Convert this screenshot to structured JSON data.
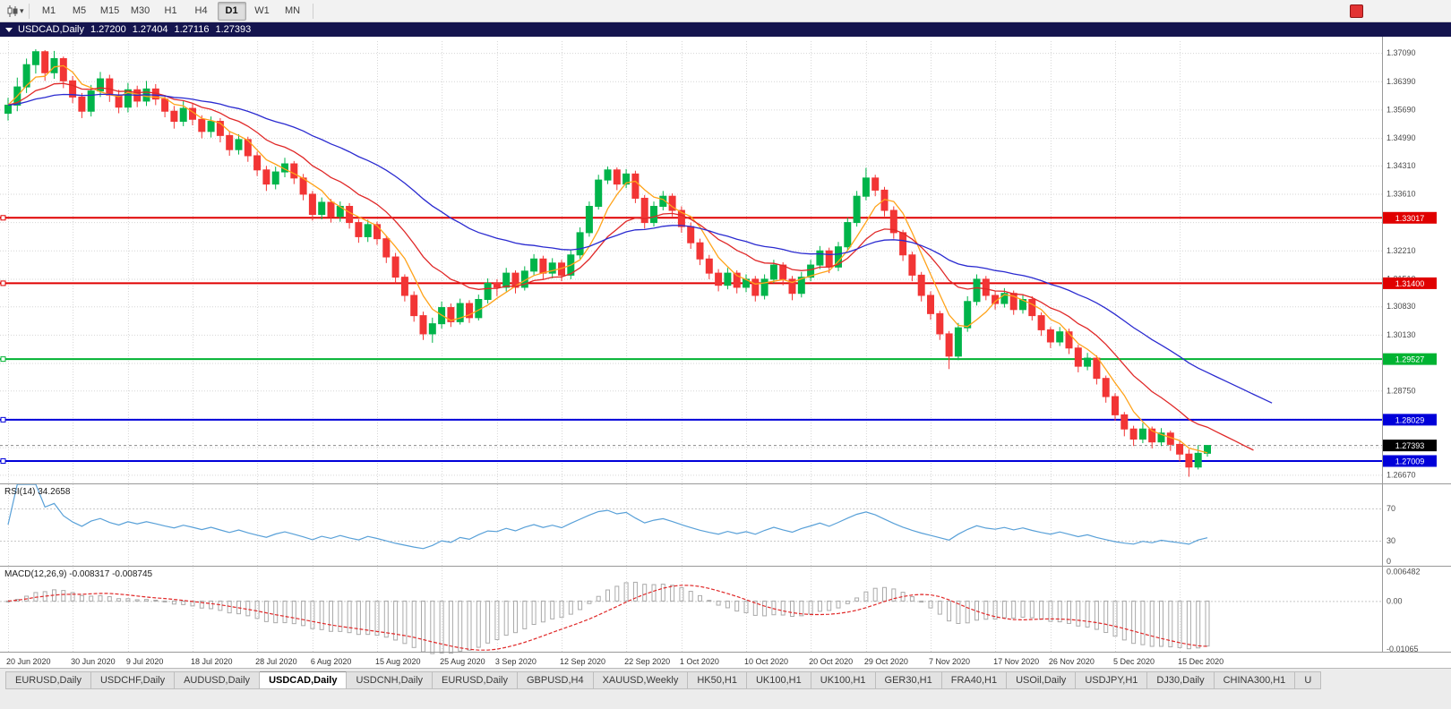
{
  "window": {
    "symbol": "USDCAD,Daily",
    "open": "1.27200",
    "high": "1.27404",
    "low": "1.27116",
    "close": "1.27393"
  },
  "toolbar": {
    "timeframes": [
      "M1",
      "M5",
      "M15",
      "M30",
      "H1",
      "H4",
      "D1",
      "W1",
      "MN"
    ],
    "active_timeframe": "D1",
    "icons": {
      "chart_type": "candlestick-chart-icon",
      "dropdown": "chevron-down-icon",
      "right_marker": "red-square-icon"
    }
  },
  "bottom_tabs": [
    {
      "label": "EURUSD,Daily",
      "active": false
    },
    {
      "label": "USDCHF,Daily",
      "active": false
    },
    {
      "label": "AUDUSD,Daily",
      "active": false
    },
    {
      "label": "USDCAD,Daily",
      "active": true
    },
    {
      "label": "USDCNH,Daily",
      "active": false
    },
    {
      "label": "EURUSD,Daily",
      "active": false
    },
    {
      "label": "GBPUSD,H4",
      "active": false
    },
    {
      "label": "XAUUSD,Weekly",
      "active": false
    },
    {
      "label": "HK50,H1",
      "active": false
    },
    {
      "label": "UK100,H1",
      "active": false
    },
    {
      "label": "UK100,H1",
      "active": false
    },
    {
      "label": "GER30,H1",
      "active": false
    },
    {
      "label": "FRA40,H1",
      "active": false
    },
    {
      "label": "USOil,Daily",
      "active": false
    },
    {
      "label": "USDJPY,H1",
      "active": false
    },
    {
      "label": "DJ30,Daily",
      "active": false
    },
    {
      "label": "CHINA300,H1",
      "active": false
    },
    {
      "label": "U",
      "active": false
    }
  ],
  "chart_data": {
    "type": "candlestick",
    "symbol": "USDCAD",
    "timeframe": "Daily",
    "colors": {
      "bull": "#00b44a",
      "bear": "#f23535",
      "grid": "#d6d6d6",
      "axis_text": "#4a4a4a",
      "separator": "#999999"
    },
    "y_axis": {
      "pmin": 1.265,
      "pmax": 1.3738,
      "grid_prices": [
        1.3709,
        1.3639,
        1.3569,
        1.3499,
        1.3431,
        1.3361,
        1.3291,
        1.3221,
        1.3151,
        1.3083,
        1.3013,
        1.2943,
        1.2875,
        1.2805,
        1.2735,
        1.2667
      ],
      "labels": [
        "1.37090",
        "1.36390",
        "1.35690",
        "1.34990",
        "1.34310",
        "1.33610",
        "1.32210",
        "1.31510",
        "1.30830",
        "1.30130",
        "1.28750",
        "1.26670"
      ]
    },
    "x_ticks": [
      {
        "i": 0,
        "label": "20 Jun 2020"
      },
      {
        "i": 7,
        "label": "30 Jun 2020"
      },
      {
        "i": 13,
        "label": "9 Jul 2020"
      },
      {
        "i": 20,
        "label": "18 Jul 2020"
      },
      {
        "i": 27,
        "label": "28 Jul 2020"
      },
      {
        "i": 33,
        "label": "6 Aug 2020"
      },
      {
        "i": 40,
        "label": "15 Aug 2020"
      },
      {
        "i": 47,
        "label": "25 Aug 2020"
      },
      {
        "i": 53,
        "label": "3 Sep 2020"
      },
      {
        "i": 60,
        "label": "12 Sep 2020"
      },
      {
        "i": 67,
        "label": "22 Sep 2020"
      },
      {
        "i": 73,
        "label": "1 Oct 2020"
      },
      {
        "i": 80,
        "label": "10 Oct 2020"
      },
      {
        "i": 87,
        "label": "20 Oct 2020"
      },
      {
        "i": 93,
        "label": "29 Oct 2020"
      },
      {
        "i": 100,
        "label": "7 Nov 2020"
      },
      {
        "i": 107,
        "label": "17 Nov 2020"
      },
      {
        "i": 113,
        "label": "26 Nov 2020"
      },
      {
        "i": 120,
        "label": "5 Dec 2020"
      },
      {
        "i": 127,
        "label": "15 Dec 2020"
      }
    ],
    "hlines": [
      {
        "price": 1.33017,
        "label": "1.33017",
        "color": "#e00000"
      },
      {
        "price": 1.314,
        "label": "1.31400",
        "color": "#e00000"
      },
      {
        "price": 1.29527,
        "label": "1.29527",
        "color": "#00b332"
      },
      {
        "price": 1.28029,
        "label": "1.28029",
        "color": "#0000d9"
      },
      {
        "price": 1.27009,
        "label": "1.27009",
        "color": "#0000d9"
      }
    ],
    "current_price": {
      "value": 1.27393,
      "label": "1.27393",
      "bg": "#000000"
    },
    "mas": [
      {
        "period": 5,
        "type": "sma",
        "color": "#ffa31a",
        "extend": 0
      },
      {
        "period": 13,
        "type": "ema",
        "color": "#e02828",
        "extend": 5
      },
      {
        "period": 34,
        "type": "ema",
        "color": "#2a2ad0",
        "extend": 7
      }
    ],
    "rsi": {
      "name": "RSI(14)",
      "value": "34.2658",
      "period": 14,
      "levels": [
        70,
        30
      ],
      "axis_labels": [
        70,
        30,
        0
      ],
      "color": "#58a0d8"
    },
    "macd": {
      "name": "MACD(12,26,9)",
      "value_main": "-0.008317",
      "value_signal": "-0.008745",
      "fast": 12,
      "slow": 26,
      "signal": 9,
      "range": [
        -0.011,
        0.0072
      ],
      "axis_labels": [
        {
          "v": 0.006482,
          "t": "0.006482"
        },
        {
          "v": 0,
          "t": "0.00"
        },
        {
          "v": -0.01065,
          "t": "-0.01065"
        }
      ],
      "hist_color": "#aaaaaa",
      "signal_color": "#e02828"
    },
    "candles": [
      [
        1.356,
        1.3598,
        1.3542,
        1.358
      ],
      [
        1.358,
        1.3648,
        1.3565,
        1.3625
      ],
      [
        1.3625,
        1.3695,
        1.361,
        1.368
      ],
      [
        1.368,
        1.3718,
        1.3658,
        1.3712
      ],
      [
        1.3712,
        1.3716,
        1.364,
        1.366
      ],
      [
        1.366,
        1.3714,
        1.3645,
        1.3695
      ],
      [
        1.3695,
        1.37,
        1.3622,
        1.364
      ],
      [
        1.364,
        1.3652,
        1.3585,
        1.36
      ],
      [
        1.36,
        1.361,
        1.3548,
        1.3565
      ],
      [
        1.3565,
        1.363,
        1.3552,
        1.3615
      ],
      [
        1.3615,
        1.3662,
        1.36,
        1.3645
      ],
      [
        1.3645,
        1.3655,
        1.3588,
        1.3605
      ],
      [
        1.3605,
        1.3618,
        1.356,
        1.3575
      ],
      [
        1.3575,
        1.3635,
        1.3562,
        1.3618
      ],
      [
        1.3618,
        1.3628,
        1.3575,
        1.359
      ],
      [
        1.359,
        1.364,
        1.3578,
        1.362
      ],
      [
        1.362,
        1.3632,
        1.358,
        1.3595
      ],
      [
        1.3595,
        1.3605,
        1.355,
        1.3565
      ],
      [
        1.3565,
        1.3578,
        1.3522,
        1.354
      ],
      [
        1.354,
        1.359,
        1.3528,
        1.3572
      ],
      [
        1.3572,
        1.3585,
        1.353,
        1.3545
      ],
      [
        1.3545,
        1.3555,
        1.3498,
        1.3515
      ],
      [
        1.3515,
        1.3552,
        1.35,
        1.354
      ],
      [
        1.354,
        1.3548,
        1.3488,
        1.3505
      ],
      [
        1.3505,
        1.3515,
        1.3455,
        1.347
      ],
      [
        1.347,
        1.3508,
        1.3458,
        1.3495
      ],
      [
        1.3495,
        1.3502,
        1.344,
        1.3455
      ],
      [
        1.3455,
        1.3465,
        1.3405,
        1.342
      ],
      [
        1.342,
        1.343,
        1.3368,
        1.3385
      ],
      [
        1.3385,
        1.3428,
        1.3372,
        1.3415
      ],
      [
        1.3415,
        1.345,
        1.3402,
        1.3435
      ],
      [
        1.3435,
        1.3442,
        1.3385,
        1.34
      ],
      [
        1.34,
        1.341,
        1.3345,
        1.336
      ],
      [
        1.336,
        1.3368,
        1.3295,
        1.331
      ],
      [
        1.331,
        1.3352,
        1.3298,
        1.334
      ],
      [
        1.334,
        1.3348,
        1.329,
        1.3305
      ],
      [
        1.3305,
        1.3342,
        1.3292,
        1.333
      ],
      [
        1.333,
        1.3338,
        1.3275,
        1.329
      ],
      [
        1.329,
        1.3298,
        1.324,
        1.3255
      ],
      [
        1.3255,
        1.3297,
        1.3242,
        1.3285
      ],
      [
        1.3285,
        1.3292,
        1.3235,
        1.325
      ],
      [
        1.325,
        1.3258,
        1.319,
        1.3205
      ],
      [
        1.3205,
        1.3215,
        1.314,
        1.3155
      ],
      [
        1.3155,
        1.3162,
        1.3095,
        1.311
      ],
      [
        1.311,
        1.312,
        1.3045,
        1.306
      ],
      [
        1.306,
        1.307,
        1.3,
        1.3015
      ],
      [
        1.3015,
        1.3055,
        1.2993,
        1.304
      ],
      [
        1.304,
        1.3095,
        1.3028,
        1.308
      ],
      [
        1.308,
        1.309,
        1.3032,
        1.3045
      ],
      [
        1.3045,
        1.3102,
        1.3038,
        1.309
      ],
      [
        1.309,
        1.3098,
        1.3042,
        1.3055
      ],
      [
        1.3055,
        1.3112,
        1.3048,
        1.31
      ],
      [
        1.31,
        1.3152,
        1.309,
        1.314
      ],
      [
        1.314,
        1.315,
        1.3108,
        1.313
      ],
      [
        1.313,
        1.3178,
        1.312,
        1.3165
      ],
      [
        1.3165,
        1.3172,
        1.3115,
        1.313
      ],
      [
        1.313,
        1.3182,
        1.3122,
        1.317
      ],
      [
        1.317,
        1.3212,
        1.316,
        1.32
      ],
      [
        1.32,
        1.3208,
        1.315,
        1.3165
      ],
      [
        1.3165,
        1.3202,
        1.3152,
        1.319
      ],
      [
        1.319,
        1.3198,
        1.3145,
        1.316
      ],
      [
        1.316,
        1.3222,
        1.315,
        1.321
      ],
      [
        1.321,
        1.3278,
        1.32,
        1.3265
      ],
      [
        1.3265,
        1.3342,
        1.3255,
        1.333
      ],
      [
        1.333,
        1.3408,
        1.3322,
        1.3395
      ],
      [
        1.3395,
        1.3428,
        1.3385,
        1.342
      ],
      [
        1.342,
        1.3426,
        1.337,
        1.3385
      ],
      [
        1.3385,
        1.3422,
        1.3375,
        1.341
      ],
      [
        1.341,
        1.3418,
        1.3338,
        1.335
      ],
      [
        1.335,
        1.3358,
        1.3275,
        1.329
      ],
      [
        1.329,
        1.3342,
        1.328,
        1.333
      ],
      [
        1.333,
        1.3368,
        1.332,
        1.3355
      ],
      [
        1.3355,
        1.3362,
        1.3305,
        1.332
      ],
      [
        1.332,
        1.333,
        1.3265,
        1.328
      ],
      [
        1.328,
        1.329,
        1.3225,
        1.324
      ],
      [
        1.324,
        1.325,
        1.3185,
        1.32
      ],
      [
        1.32,
        1.321,
        1.315,
        1.3165
      ],
      [
        1.3165,
        1.3175,
        1.312,
        1.3135
      ],
      [
        1.3135,
        1.3178,
        1.3125,
        1.3165
      ],
      [
        1.3165,
        1.3172,
        1.3115,
        1.313
      ],
      [
        1.313,
        1.3162,
        1.3118,
        1.315
      ],
      [
        1.315,
        1.3158,
        1.3095,
        1.311
      ],
      [
        1.311,
        1.3162,
        1.31,
        1.315
      ],
      [
        1.315,
        1.3198,
        1.314,
        1.3185
      ],
      [
        1.3185,
        1.3192,
        1.3135,
        1.315
      ],
      [
        1.315,
        1.3158,
        1.3098,
        1.3115
      ],
      [
        1.3115,
        1.3168,
        1.3105,
        1.3155
      ],
      [
        1.3155,
        1.3198,
        1.3145,
        1.3185
      ],
      [
        1.3185,
        1.3232,
        1.3175,
        1.322
      ],
      [
        1.322,
        1.3228,
        1.3165,
        1.318
      ],
      [
        1.318,
        1.3242,
        1.317,
        1.323
      ],
      [
        1.323,
        1.3302,
        1.322,
        1.329
      ],
      [
        1.329,
        1.3368,
        1.328,
        1.3355
      ],
      [
        1.3355,
        1.3425,
        1.3345,
        1.34
      ],
      [
        1.34,
        1.3408,
        1.3355,
        1.337
      ],
      [
        1.337,
        1.3378,
        1.3305,
        1.332
      ],
      [
        1.332,
        1.333,
        1.325,
        1.3265
      ],
      [
        1.3265,
        1.3272,
        1.3195,
        1.321
      ],
      [
        1.321,
        1.3218,
        1.3145,
        1.316
      ],
      [
        1.316,
        1.3168,
        1.3095,
        1.311
      ],
      [
        1.311,
        1.312,
        1.305,
        1.3065
      ],
      [
        1.3065,
        1.3072,
        1.3,
        1.3015
      ],
      [
        1.3015,
        1.3022,
        1.2928,
        1.296
      ],
      [
        1.296,
        1.3042,
        1.295,
        1.303
      ],
      [
        1.303,
        1.3108,
        1.302,
        1.3095
      ],
      [
        1.3095,
        1.3162,
        1.3085,
        1.315
      ],
      [
        1.315,
        1.3158,
        1.3098,
        1.311
      ],
      [
        1.311,
        1.3122,
        1.3075,
        1.309
      ],
      [
        1.309,
        1.3128,
        1.308,
        1.3115
      ],
      [
        1.3115,
        1.3122,
        1.3062,
        1.3075
      ],
      [
        1.3075,
        1.3112,
        1.3065,
        1.31
      ],
      [
        1.31,
        1.3108,
        1.3048,
        1.306
      ],
      [
        1.306,
        1.3068,
        1.301,
        1.3025
      ],
      [
        1.3025,
        1.3032,
        1.298,
        1.2995
      ],
      [
        1.2995,
        1.3032,
        1.2985,
        1.302
      ],
      [
        1.302,
        1.3028,
        1.2965,
        1.298
      ],
      [
        1.298,
        1.2988,
        1.292,
        1.2935
      ],
      [
        1.2935,
        1.2968,
        1.2925,
        1.2955
      ],
      [
        1.2955,
        1.2962,
        1.289,
        1.2905
      ],
      [
        1.2905,
        1.2912,
        1.2845,
        1.286
      ],
      [
        1.286,
        1.2868,
        1.28,
        1.2815
      ],
      [
        1.2815,
        1.2822,
        1.2762,
        1.278
      ],
      [
        1.278,
        1.2788,
        1.2738,
        1.2755
      ],
      [
        1.2755,
        1.2795,
        1.2745,
        1.278
      ],
      [
        1.278,
        1.2786,
        1.2732,
        1.2748
      ],
      [
        1.2748,
        1.2782,
        1.2738,
        1.277
      ],
      [
        1.277,
        1.2776,
        1.2726,
        1.2742
      ],
      [
        1.2742,
        1.275,
        1.27,
        1.2718
      ],
      [
        1.2718,
        1.273,
        1.2662,
        1.2686
      ],
      [
        1.2686,
        1.274,
        1.268,
        1.272
      ],
      [
        1.272,
        1.27404,
        1.27116,
        1.27393
      ]
    ]
  }
}
